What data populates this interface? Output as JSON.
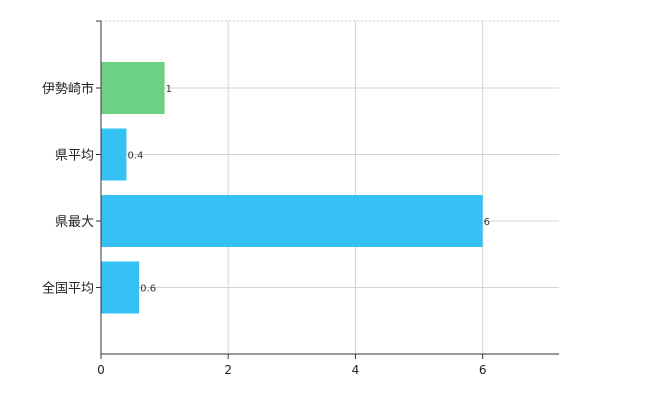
{
  "chart_data": {
    "type": "bar",
    "orientation": "horizontal",
    "title": "",
    "xlabel": "",
    "ylabel": "",
    "categories": [
      "伊勢崎市",
      "県平均",
      "県最大",
      "全国平均"
    ],
    "values": [
      1,
      0.4,
      6,
      0.6
    ],
    "data_labels": [
      "1",
      "0.4",
      "6",
      "0.6"
    ],
    "bar_colors": [
      "#6dd184",
      "#36c1f5",
      "#36c1f5",
      "#36c1f5"
    ],
    "xlim": [
      0,
      7.2
    ],
    "xticks": [
      0,
      2,
      4,
      6
    ],
    "xtick_labels": [
      "0",
      "2",
      "4",
      "6"
    ],
    "grid": true,
    "legend": "none"
  }
}
